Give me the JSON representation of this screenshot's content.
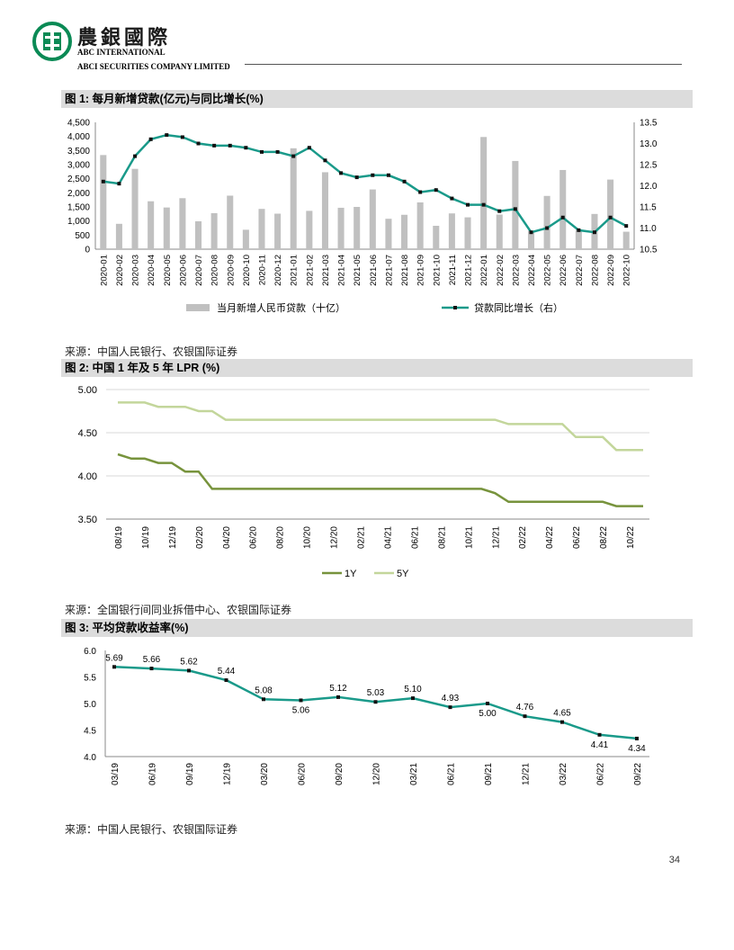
{
  "header": {
    "brand_cn": "農銀國際",
    "brand_en1": "ABC INTERNATIONAL",
    "brand_en2": "ABCI SECURITIES COMPANY LIMITED"
  },
  "figures": [
    {
      "title": "图 1:  每月新增贷款(亿元)与同比增长(%)",
      "source": "来源：中国人民银行、农银国际证券"
    },
    {
      "title": "图 2:  中国 1 年及 5 年 LPR (%)",
      "source": "来源：全国银行间同业拆借中心、农银国际证券"
    },
    {
      "title": "图 3:  平均贷款收益率(%)",
      "source": "来源：中国人民银行、农银国际证券"
    }
  ],
  "page_number": "34",
  "colors": {
    "teal": "#1a9a8a",
    "grey_bar": "#c0c0c0",
    "lpr_1y": "#77933c",
    "lpr_5y": "#c3d69b"
  },
  "chart_data": [
    {
      "type": "bar",
      "title": "每月新增贷款(亿元)与同比增长(%)",
      "categories": [
        "2020-01",
        "2020-02",
        "2020-03",
        "2020-04",
        "2020-05",
        "2020-06",
        "2020-07",
        "2020-08",
        "2020-09",
        "2020-10",
        "2020-11",
        "2020-12",
        "2021-01",
        "2021-02",
        "2021-03",
        "2021-04",
        "2021-05",
        "2021-06",
        "2021-07",
        "2021-08",
        "2021-09",
        "2021-10",
        "2021-11",
        "2021-12",
        "2022-01",
        "2022-02",
        "2022-03",
        "2022-04",
        "2022-05",
        "2022-06",
        "2022-07",
        "2022-08",
        "2022-09",
        "2022-10"
      ],
      "series": [
        {
          "name": "当月新增人民币贷款（十亿）",
          "type": "bar",
          "axis": "left",
          "values": [
            3340,
            900,
            2850,
            1700,
            1480,
            1810,
            990,
            1280,
            1900,
            690,
            1430,
            1260,
            3580,
            1360,
            2730,
            1470,
            1500,
            2120,
            1080,
            1220,
            1660,
            830,
            1270,
            1130,
            3980,
            1230,
            3130,
            650,
            1890,
            2810,
            680,
            1250,
            2470,
            620
          ]
        },
        {
          "name": "贷款同比增长（右）",
          "type": "line",
          "axis": "right",
          "values": [
            12.1,
            12.05,
            12.7,
            13.1,
            13.2,
            13.15,
            13.0,
            12.95,
            12.95,
            12.9,
            12.8,
            12.8,
            12.7,
            12.9,
            12.6,
            12.3,
            12.2,
            12.25,
            12.25,
            12.1,
            11.85,
            11.9,
            11.7,
            11.55,
            11.55,
            11.4,
            11.45,
            10.9,
            11.0,
            11.25,
            10.95,
            10.9,
            11.25,
            11.05
          ]
        }
      ],
      "yticks_left": [
        "4,500",
        "4,000",
        "3,500",
        "3,000",
        "2,500",
        "2,000",
        "1,500",
        "1,000",
        "500",
        "0"
      ],
      "yticks_right": [
        "13.5",
        "13.0",
        "12.5",
        "12.0",
        "11.5",
        "11.0",
        "10.5"
      ],
      "ylim_left": [
        0,
        4500
      ],
      "ylim_right": [
        10.5,
        13.5
      ],
      "legend": "bottom"
    },
    {
      "type": "line",
      "title": "中国 1 年及 5 年 LPR (%)",
      "x_ticks": [
        "08/19",
        "10/19",
        "12/19",
        "02/20",
        "04/20",
        "06/20",
        "08/20",
        "10/20",
        "12/20",
        "02/21",
        "04/21",
        "06/21",
        "08/21",
        "10/21",
        "12/21",
        "02/22",
        "04/22",
        "06/22",
        "08/22",
        "10/22"
      ],
      "series": [
        {
          "name": "1Y",
          "values": [
            4.25,
            4.2,
            4.2,
            4.15,
            4.15,
            4.05,
            4.05,
            3.85,
            3.85,
            3.85,
            3.85,
            3.85,
            3.85,
            3.85,
            3.85,
            3.85,
            3.85,
            3.85,
            3.85,
            3.85,
            3.85,
            3.85,
            3.85,
            3.85,
            3.85,
            3.85,
            3.85,
            3.85,
            3.8,
            3.7,
            3.7,
            3.7,
            3.7,
            3.7,
            3.7,
            3.7,
            3.7,
            3.65,
            3.65,
            3.65
          ]
        },
        {
          "name": "5Y",
          "values": [
            4.85,
            4.85,
            4.85,
            4.8,
            4.8,
            4.8,
            4.75,
            4.75,
            4.65,
            4.65,
            4.65,
            4.65,
            4.65,
            4.65,
            4.65,
            4.65,
            4.65,
            4.65,
            4.65,
            4.65,
            4.65,
            4.65,
            4.65,
            4.65,
            4.65,
            4.65,
            4.65,
            4.65,
            4.65,
            4.6,
            4.6,
            4.6,
            4.6,
            4.6,
            4.45,
            4.45,
            4.45,
            4.3,
            4.3,
            4.3
          ]
        }
      ],
      "yticks": [
        "5.00",
        "4.50",
        "4.00",
        "3.50"
      ],
      "ylim": [
        3.5,
        5.0
      ],
      "legend": "bottom"
    },
    {
      "type": "line",
      "title": "平均贷款收益率(%)",
      "categories": [
        "03/19",
        "06/19",
        "09/19",
        "12/19",
        "03/20",
        "06/20",
        "09/20",
        "12/20",
        "03/21",
        "06/21",
        "09/21",
        "12/21",
        "03/22",
        "06/22",
        "09/22"
      ],
      "values": [
        5.69,
        5.66,
        5.62,
        5.44,
        5.08,
        5.06,
        5.12,
        5.03,
        5.1,
        4.93,
        5.0,
        4.76,
        4.65,
        4.41,
        4.34
      ],
      "labels": [
        "5.69",
        "5.66",
        "5.62",
        "5.44",
        "5.08",
        "5.06",
        "5.12",
        "5.03",
        "5.10",
        "4.93",
        "5.00",
        "4.76",
        "4.65",
        "4.41",
        "4.34"
      ],
      "yticks": [
        "6.0",
        "5.5",
        "5.0",
        "4.5",
        "4.0"
      ],
      "ylim": [
        4.0,
        6.0
      ]
    }
  ]
}
